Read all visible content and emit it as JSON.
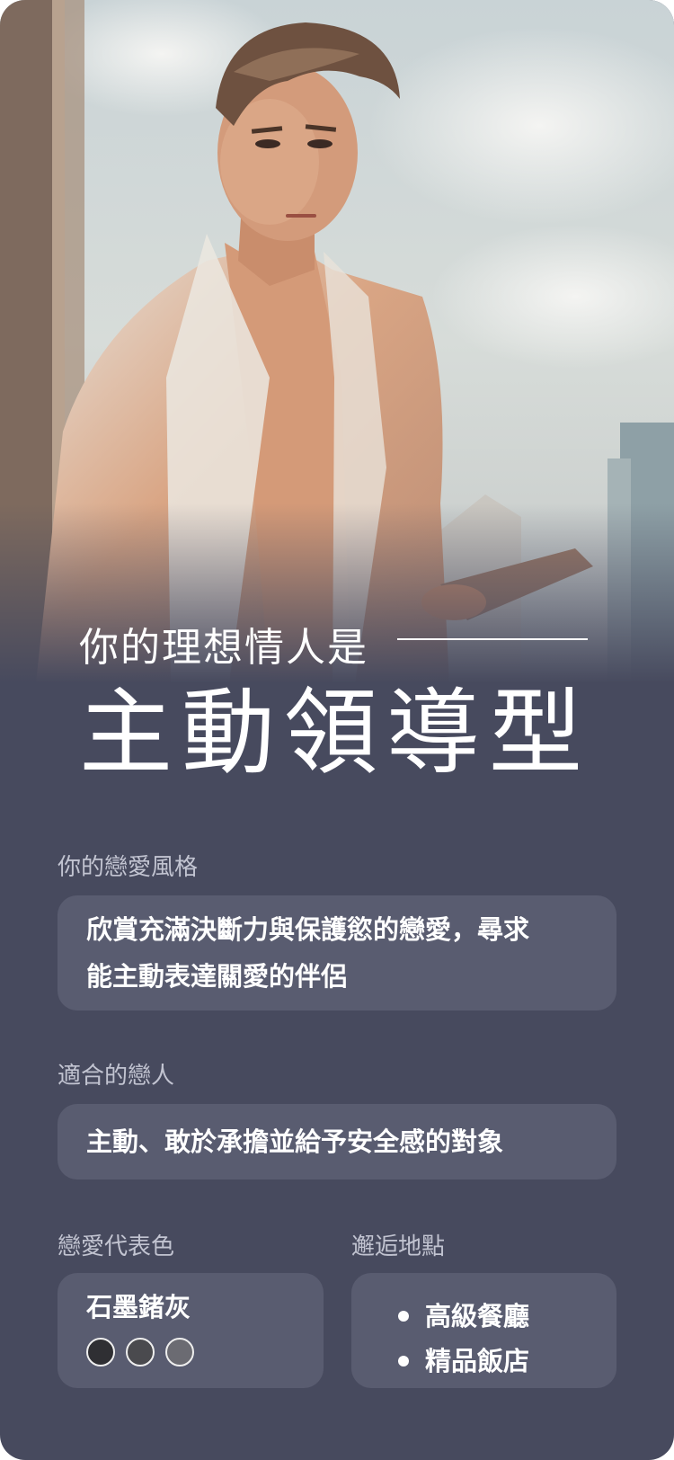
{
  "result": {
    "subtitle": "你的理想情人是",
    "title": "主動領導型"
  },
  "sections": {
    "style": {
      "label": "你的戀愛風格",
      "line1": "欣賞充滿決斷力與保護慾的戀愛，尋求",
      "line2": "能主動表達關愛的伴侶"
    },
    "match": {
      "label": "適合的戀人",
      "text": "主動、敢於承擔並給予安全感的對象"
    },
    "color": {
      "label": "戀愛代表色",
      "name": "石墨鍺灰",
      "swatches": [
        "#2f2f33",
        "#4a4a4e",
        "#6b6b72"
      ]
    },
    "place": {
      "label": "邂逅地點",
      "items": [
        "高級餐廳",
        "精品飯店"
      ]
    }
  },
  "image": {
    "description_icon": "illustrated-man-in-suit-portrait"
  },
  "colors": {
    "background": "#474a5e",
    "box": "#595c70",
    "label": "#c2c4d1",
    "text": "#ffffff"
  }
}
